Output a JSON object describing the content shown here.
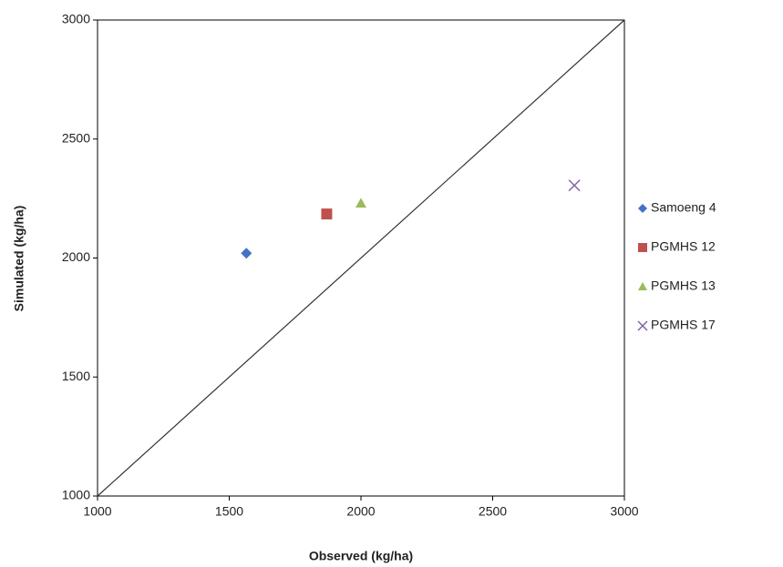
{
  "chart_data": {
    "type": "scatter",
    "x_label": "Observed (kg/ha)",
    "y_label": "Simulated (kg/ha)",
    "series": [
      {
        "name": "Samoeng 4",
        "color": "#4472c4",
        "marker": "diamond",
        "x": [
          1565
        ],
        "values": [
          2020
        ]
      },
      {
        "name": "PGMHS 12",
        "color": "#c0504d",
        "marker": "square",
        "x": [
          1870
        ],
        "values": [
          2185
        ]
      },
      {
        "name": "PGMHS 13",
        "color": "#9bbb59",
        "marker": "triangle",
        "x": [
          2000
        ],
        "values": [
          2230
        ]
      },
      {
        "name": "PGMHS 17",
        "color": "#8064a2",
        "marker": "x",
        "x": [
          2810
        ],
        "values": [
          2305
        ]
      }
    ],
    "xlim": [
      1000,
      3000
    ],
    "xticks": [
      1000,
      1500,
      2000,
      2500,
      3000
    ],
    "ylim": [
      1000,
      3000
    ],
    "yticks": [
      1000,
      1500,
      2000,
      2500,
      3000
    ],
    "grid": false,
    "legend": "right",
    "reference_line": true
  }
}
